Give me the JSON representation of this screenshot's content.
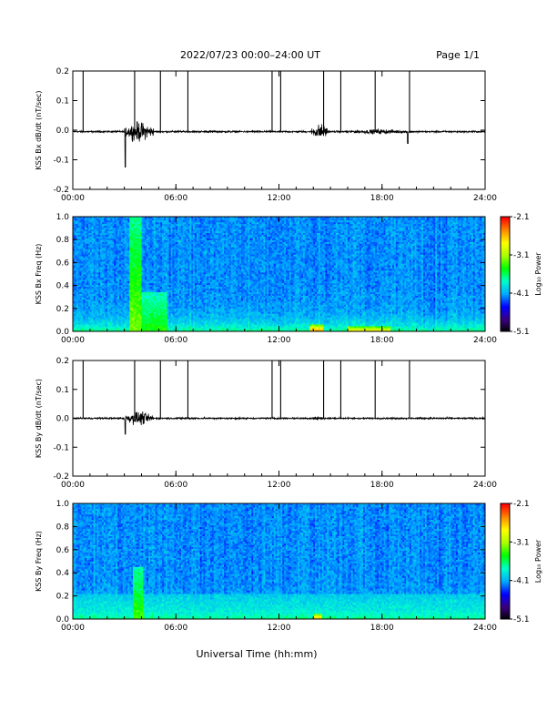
{
  "header": {
    "title": "2022/07/23  00:00–24:00 UT",
    "page": "Page 1/1"
  },
  "footer": {
    "xlabel": "Universal Time (hh:mm)"
  },
  "time_ticks": [
    "00:00",
    "06:00",
    "12:00",
    "18:00",
    "24:00"
  ],
  "colorbar": {
    "title": "Log₁₀ Power",
    "tick_labels": [
      "-2.1",
      "-3.1",
      "-4.1",
      "-5.1"
    ],
    "range": [
      -5.1,
      -2.1
    ],
    "colors": [
      "#000000",
      "#3a0080",
      "#0000ff",
      "#00aaff",
      "#00ffcc",
      "#00ff00",
      "#aaff00",
      "#ffff00",
      "#ff8800",
      "#ff0000"
    ]
  },
  "chart_data": [
    {
      "type": "line",
      "title": "",
      "ylabel": "KSS Bx dB/dt (nT/sec)",
      "xlim": [
        0,
        24
      ],
      "ylim": [
        -0.2,
        0.2
      ],
      "yticks": [
        "0.2",
        "0.1",
        "0.0",
        "-0.1",
        "-0.2"
      ],
      "baseline": -0.005,
      "spikes_hours": [
        0.6,
        3.6,
        5.1,
        6.7,
        11.6,
        12.1,
        14.6,
        15.6,
        17.6,
        19.6
      ],
      "activity_windows": [
        {
          "start": 3.0,
          "end": 4.7,
          "amplitude": 0.05
        },
        {
          "start": 13.9,
          "end": 14.9,
          "amplitude": 0.04
        },
        {
          "start": 15.8,
          "end": 19.8,
          "amplitude": 0.012
        }
      ],
      "extrema": [
        {
          "hour": 3.05,
          "value": -0.125
        },
        {
          "hour": 19.5,
          "value": -0.045
        }
      ],
      "line_color": "#000000"
    },
    {
      "type": "heatmap",
      "title": "",
      "ylabel": "KSS Bx Freq (Hz)",
      "xlim": [
        0,
        24
      ],
      "ylim": [
        0.0,
        1.0
      ],
      "yticks": [
        "1.0",
        "0.8",
        "0.6",
        "0.4",
        "0.2",
        "0.0"
      ],
      "z_range": [
        -5.1,
        -2.1
      ],
      "features": [
        {
          "hour_start": 3.3,
          "hour_end": 4.0,
          "freq_max": 1.0,
          "level": -3.2
        },
        {
          "hour_start": 4.0,
          "hour_end": 5.5,
          "freq_max": 0.35,
          "level": -3.4
        },
        {
          "hour_start": 13.8,
          "hour_end": 14.6,
          "freq_max": 0.06,
          "level": -2.4
        },
        {
          "hour_start": 16.0,
          "hour_end": 18.5,
          "freq_max": 0.05,
          "level": -2.7
        }
      ]
    },
    {
      "type": "line",
      "title": "",
      "ylabel": "KSS By dB/dt (nT/sec)",
      "xlim": [
        0,
        24
      ],
      "ylim": [
        -0.2,
        0.2
      ],
      "yticks": [
        "0.2",
        "0.1",
        "0.0",
        "-0.1",
        "-0.2"
      ],
      "baseline": 0.0,
      "spikes_hours": [
        0.6,
        3.6,
        5.1,
        6.7,
        11.6,
        12.1,
        14.6,
        15.6,
        17.6,
        19.6
      ],
      "activity_windows": [
        {
          "start": 3.0,
          "end": 4.7,
          "amplitude": 0.035
        },
        {
          "start": 13.8,
          "end": 14.6,
          "amplitude": 0.01
        }
      ],
      "extrema": [
        {
          "hour": 3.05,
          "value": -0.055
        }
      ],
      "line_color": "#000000"
    },
    {
      "type": "heatmap",
      "title": "",
      "ylabel": "KSS By Freq (Hz)",
      "xlim": [
        0,
        24
      ],
      "ylim": [
        0.0,
        1.0
      ],
      "yticks": [
        "1.0",
        "0.8",
        "0.6",
        "0.4",
        "0.2",
        "0.0"
      ],
      "z_range": [
        -5.1,
        -2.1
      ],
      "features": [
        {
          "hour_start": 3.5,
          "hour_end": 4.1,
          "freq_max": 0.45,
          "level": -3.3
        },
        {
          "hour_start": 0.0,
          "hour_end": 24.0,
          "freq_max": 0.22,
          "level": -3.8
        },
        {
          "hour_start": 14.0,
          "hour_end": 14.5,
          "freq_max": 0.05,
          "level": -2.5
        }
      ]
    }
  ]
}
